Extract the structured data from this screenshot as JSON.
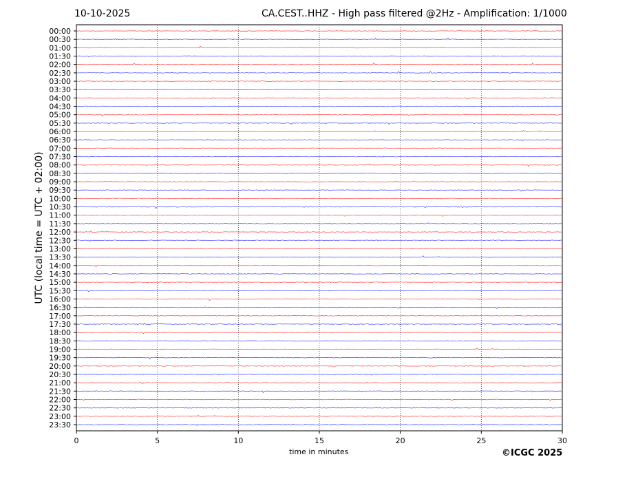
{
  "header": {
    "date": "10-10-2025",
    "title": "CA.CEST..HHZ - High pass filtered @2Hz - Amplification: 1/1000"
  },
  "copyright": "©ICGC 2025",
  "chart_data": {
    "type": "line",
    "subtype": "helicorder",
    "xlabel": "time in minutes",
    "ylabel": "UTC (local time = UTC + 02:00)",
    "xlim": [
      0,
      30
    ],
    "xticks": [
      "0",
      "5",
      "10",
      "15",
      "20",
      "25",
      "30"
    ],
    "grid": "vertical dotted lines at x ticks",
    "row_colors": [
      "#ff0000",
      "#0000ff"
    ],
    "rows": [
      "00:00",
      "00:30",
      "01:00",
      "01:30",
      "02:00",
      "02:30",
      "03:00",
      "03:30",
      "04:00",
      "04:30",
      "05:00",
      "05:30",
      "06:00",
      "06:30",
      "07:00",
      "07:30",
      "08:00",
      "08:30",
      "09:00",
      "09:30",
      "10:00",
      "10:30",
      "11:00",
      "11:30",
      "12:00",
      "12:30",
      "13:00",
      "13:30",
      "14:00",
      "14:30",
      "15:00",
      "15:30",
      "16:00",
      "16:30",
      "17:00",
      "17:30",
      "18:00",
      "18:30",
      "19:00",
      "19:30",
      "20:00",
      "20:30",
      "21:00",
      "21:30",
      "22:00",
      "22:30",
      "23:00",
      "23:30"
    ]
  }
}
